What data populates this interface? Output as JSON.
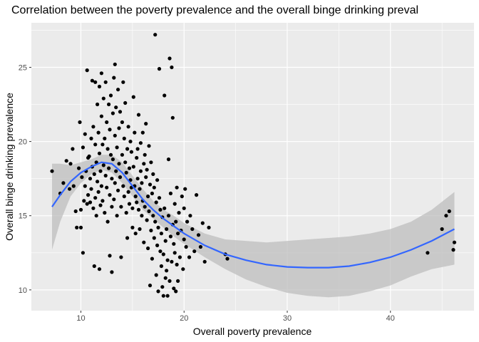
{
  "chart_data": {
    "type": "scatter",
    "title": "Correlation between the poverty prevalence and the overall binge drinking preval",
    "xlabel": "Overall poverty prevalence",
    "ylabel": "Overall binge drinking prevalence",
    "xlim": [
      5.2,
      48.1
    ],
    "ylim": [
      8.6,
      28.0
    ],
    "x_ticks": [
      10,
      20,
      30,
      40
    ],
    "y_ticks": [
      10,
      15,
      20,
      25
    ],
    "grid": true,
    "panel_background": "#ebebeb",
    "point_color": "#000000",
    "smooth": {
      "method": "loess",
      "line_color": "#3366ff",
      "band_color": "#bebebe",
      "x": [
        7.2,
        8,
        9,
        10,
        11,
        12,
        13,
        14,
        15,
        16,
        17,
        18,
        19,
        20,
        22,
        24,
        26,
        28,
        30,
        32,
        34,
        36,
        38,
        40,
        42,
        44,
        46.2
      ],
      "y": [
        15.6,
        16.4,
        17.3,
        17.9,
        18.3,
        18.6,
        18.5,
        17.9,
        17.0,
        16.1,
        15.4,
        14.8,
        14.3,
        13.8,
        13.0,
        12.4,
        12.0,
        11.7,
        11.55,
        11.5,
        11.5,
        11.6,
        11.85,
        12.2,
        12.7,
        13.3,
        14.1
      ],
      "lower": [
        12.7,
        14.6,
        16.3,
        17.2,
        17.8,
        18.1,
        17.9,
        17.2,
        16.3,
        15.4,
        14.8,
        14.2,
        13.6,
        13.1,
        12.2,
        11.4,
        10.7,
        10.2,
        9.8,
        9.6,
        9.5,
        9.6,
        9.9,
        10.3,
        10.9,
        11.4,
        11.7
      ],
      "upper": [
        18.5,
        18.5,
        18.4,
        18.6,
        18.8,
        19.1,
        19.1,
        18.6,
        17.7,
        16.8,
        16.0,
        15.4,
        15.0,
        14.5,
        13.8,
        13.4,
        13.3,
        13.2,
        13.3,
        13.4,
        13.5,
        13.6,
        13.8,
        14.1,
        14.6,
        15.4,
        16.6
      ]
    },
    "points": [
      [
        7.2,
        18.0
      ],
      [
        8.0,
        16.5
      ],
      [
        8.3,
        17.2
      ],
      [
        8.6,
        18.7
      ],
      [
        8.9,
        16.8
      ],
      [
        9.0,
        18.5
      ],
      [
        9.2,
        19.5
      ],
      [
        9.3,
        17.0
      ],
      [
        9.5,
        15.3
      ],
      [
        9.6,
        14.2
      ],
      [
        9.8,
        18.2
      ],
      [
        9.9,
        21.3
      ],
      [
        10.0,
        15.4
      ],
      [
        10.0,
        14.2
      ],
      [
        10.1,
        17.6
      ],
      [
        10.2,
        12.5
      ],
      [
        10.2,
        19.6
      ],
      [
        10.3,
        16.0
      ],
      [
        10.4,
        20.5
      ],
      [
        10.4,
        17.0
      ],
      [
        10.5,
        18.0
      ],
      [
        10.6,
        24.8
      ],
      [
        10.6,
        15.8
      ],
      [
        10.7,
        18.9
      ],
      [
        10.7,
        16.4
      ],
      [
        10.8,
        19.0
      ],
      [
        10.9,
        17.5
      ],
      [
        10.9,
        15.9
      ],
      [
        11.0,
        20.2
      ],
      [
        11.0,
        16.8
      ],
      [
        11.1,
        24.1
      ],
      [
        11.1,
        18.3
      ],
      [
        11.2,
        21.0
      ],
      [
        11.2,
        15.5
      ],
      [
        11.3,
        17.8
      ],
      [
        11.3,
        11.6
      ],
      [
        11.4,
        24.0
      ],
      [
        11.4,
        19.8
      ],
      [
        11.4,
        16.2
      ],
      [
        11.5,
        18.6
      ],
      [
        11.5,
        15.0
      ],
      [
        11.6,
        22.5
      ],
      [
        11.6,
        17.3
      ],
      [
        11.7,
        20.6
      ],
      [
        11.7,
        16.6
      ],
      [
        11.8,
        23.7
      ],
      [
        11.8,
        19.2
      ],
      [
        11.8,
        11.4
      ],
      [
        11.9,
        18.0
      ],
      [
        11.9,
        15.7
      ],
      [
        12.0,
        24.6
      ],
      [
        12.0,
        21.7
      ],
      [
        12.0,
        17.0
      ],
      [
        12.1,
        19.8
      ],
      [
        12.1,
        16.0
      ],
      [
        12.2,
        22.9
      ],
      [
        12.2,
        18.4
      ],
      [
        12.3,
        20.2
      ],
      [
        12.3,
        15.2
      ],
      [
        12.4,
        24.0
      ],
      [
        12.4,
        17.7
      ],
      [
        12.5,
        21.3
      ],
      [
        12.5,
        16.9
      ],
      [
        12.6,
        19.5
      ],
      [
        12.6,
        14.6
      ],
      [
        12.7,
        22.5
      ],
      [
        12.7,
        18.2
      ],
      [
        12.8,
        12.3
      ],
      [
        12.8,
        20.8
      ],
      [
        12.8,
        16.4
      ],
      [
        12.9,
        23.1
      ],
      [
        12.9,
        19.1
      ],
      [
        13.0,
        11.2
      ],
      [
        13.0,
        17.5
      ],
      [
        13.0,
        15.6
      ],
      [
        13.1,
        21.9
      ],
      [
        13.1,
        18.8
      ],
      [
        13.2,
        24.3
      ],
      [
        13.2,
        16.1
      ],
      [
        13.3,
        25.2
      ],
      [
        13.3,
        20.4
      ],
      [
        13.3,
        17.2
      ],
      [
        13.4,
        22.3
      ],
      [
        13.4,
        18.0
      ],
      [
        13.5,
        19.6
      ],
      [
        13.5,
        15.0
      ],
      [
        13.6,
        23.5
      ],
      [
        13.6,
        16.7
      ],
      [
        13.7,
        20.9
      ],
      [
        13.7,
        18.5
      ],
      [
        13.8,
        22.0
      ],
      [
        13.8,
        17.6
      ],
      [
        13.9,
        15.6
      ],
      [
        13.9,
        12.2
      ],
      [
        14.0,
        21.3
      ],
      [
        14.0,
        19.1
      ],
      [
        14.1,
        17.0
      ],
      [
        14.1,
        24.0
      ],
      [
        14.2,
        20.2
      ],
      [
        14.2,
        16.3
      ],
      [
        14.3,
        18.6
      ],
      [
        14.3,
        22.6
      ],
      [
        14.4,
        15.2
      ],
      [
        14.4,
        17.9
      ],
      [
        14.5,
        19.5
      ],
      [
        14.5,
        13.5
      ],
      [
        14.6,
        16.6
      ],
      [
        14.6,
        21.0
      ],
      [
        14.7,
        18.2
      ],
      [
        14.7,
        15.8
      ],
      [
        14.8,
        17.4
      ],
      [
        14.8,
        20.0
      ],
      [
        14.9,
        16.9
      ],
      [
        14.9,
        19.3
      ],
      [
        15.0,
        15.5
      ],
      [
        15.0,
        14.2
      ],
      [
        15.1,
        18.3
      ],
      [
        15.1,
        23.0
      ],
      [
        15.2,
        17.0
      ],
      [
        15.2,
        20.6
      ],
      [
        15.3,
        16.3
      ],
      [
        15.3,
        13.8
      ],
      [
        15.4,
        18.9
      ],
      [
        15.4,
        15.9
      ],
      [
        15.5,
        17.5
      ],
      [
        15.5,
        19.5
      ],
      [
        15.6,
        15.4
      ],
      [
        15.6,
        21.8
      ],
      [
        15.7,
        16.8
      ],
      [
        15.7,
        14.1
      ],
      [
        15.8,
        18.0
      ],
      [
        15.8,
        19.9
      ],
      [
        15.9,
        15.0
      ],
      [
        15.9,
        17.2
      ],
      [
        16.0,
        20.6
      ],
      [
        16.0,
        16.0
      ],
      [
        16.1,
        18.5
      ],
      [
        16.1,
        13.2
      ],
      [
        16.2,
        15.6
      ],
      [
        16.2,
        19.1
      ],
      [
        16.3,
        17.6
      ],
      [
        16.3,
        21.2
      ],
      [
        16.4,
        14.7
      ],
      [
        16.4,
        18.1
      ],
      [
        16.5,
        16.3
      ],
      [
        16.5,
        12.8
      ],
      [
        16.6,
        19.7
      ],
      [
        16.6,
        15.3
      ],
      [
        16.7,
        17.1
      ],
      [
        16.7,
        10.3
      ],
      [
        16.8,
        14.0
      ],
      [
        16.8,
        18.6
      ],
      [
        16.9,
        16.5
      ],
      [
        16.9,
        12.1
      ],
      [
        17.0,
        15.0
      ],
      [
        17.0,
        17.8
      ],
      [
        17.1,
        13.5
      ],
      [
        17.1,
        16.9
      ],
      [
        17.2,
        27.2
      ],
      [
        17.2,
        14.6
      ],
      [
        17.3,
        15.9
      ],
      [
        17.3,
        11.0
      ],
      [
        17.4,
        13.0
      ],
      [
        17.4,
        17.4
      ],
      [
        17.5,
        14.2
      ],
      [
        17.5,
        9.9
      ],
      [
        17.6,
        24.9
      ],
      [
        17.6,
        16.2
      ],
      [
        17.7,
        12.6
      ],
      [
        17.7,
        15.4
      ],
      [
        17.8,
        11.6
      ],
      [
        17.8,
        13.8
      ],
      [
        17.9,
        10.2
      ],
      [
        17.9,
        14.9
      ],
      [
        18.0,
        9.6
      ],
      [
        18.0,
        12.4
      ],
      [
        18.1,
        23.1
      ],
      [
        18.1,
        15.5
      ],
      [
        18.2,
        10.8
      ],
      [
        18.2,
        13.3
      ],
      [
        18.3,
        11.3
      ],
      [
        18.3,
        14.1
      ],
      [
        18.4,
        9.6
      ],
      [
        18.4,
        12.0
      ],
      [
        18.5,
        18.8
      ],
      [
        18.5,
        15.0
      ],
      [
        18.6,
        25.6
      ],
      [
        18.6,
        10.6
      ],
      [
        18.7,
        13.6
      ],
      [
        18.7,
        16.5
      ],
      [
        18.8,
        25.0
      ],
      [
        18.8,
        11.9
      ],
      [
        18.9,
        14.4
      ],
      [
        18.9,
        21.6
      ],
      [
        19.0,
        10.1
      ],
      [
        19.0,
        13.1
      ],
      [
        19.1,
        15.8
      ],
      [
        19.1,
        12.5
      ],
      [
        19.2,
        9.9
      ],
      [
        19.2,
        14.6
      ],
      [
        19.3,
        11.7
      ],
      [
        19.3,
        16.9
      ],
      [
        19.4,
        13.8
      ],
      [
        19.4,
        10.6
      ],
      [
        19.5,
        15.2
      ],
      [
        19.6,
        12.2
      ],
      [
        19.7,
        14.0
      ],
      [
        19.8,
        16.3
      ],
      [
        19.9,
        11.4
      ],
      [
        20.0,
        13.4
      ],
      [
        20.0,
        15.5
      ],
      [
        20.1,
        16.8
      ],
      [
        20.2,
        12.9
      ],
      [
        20.3,
        14.6
      ],
      [
        20.5,
        12.2
      ],
      [
        20.6,
        15.0
      ],
      [
        20.8,
        14.1
      ],
      [
        21.0,
        12.6
      ],
      [
        21.2,
        16.4
      ],
      [
        21.4,
        13.7
      ],
      [
        21.6,
        12.9
      ],
      [
        21.8,
        14.5
      ],
      [
        22.0,
        11.9
      ],
      [
        22.4,
        14.2
      ],
      [
        24.0,
        12.4
      ],
      [
        24.2,
        12.1
      ],
      [
        43.6,
        12.5
      ],
      [
        45.0,
        14.1
      ],
      [
        45.4,
        15.0
      ],
      [
        45.7,
        15.3
      ],
      [
        46.1,
        12.7
      ],
      [
        46.2,
        13.2
      ]
    ]
  }
}
